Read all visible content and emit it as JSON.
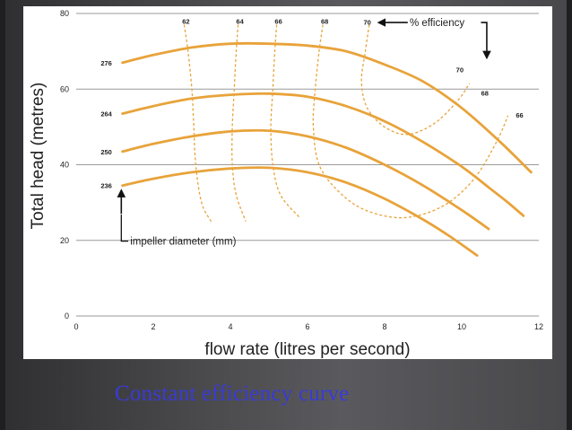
{
  "caption": "Constant efficiency curve",
  "colors": {
    "curve": "#E8A33A",
    "grid": "#9a9a9a",
    "text": "#222222",
    "caption": "#3a3ad6"
  },
  "chart_data": {
    "type": "line",
    "xlabel": "flow rate (litres per second)",
    "ylabel": "Total head (metres)",
    "xlim": [
      0,
      12
    ],
    "ylim": [
      0,
      80
    ],
    "xticks": [
      0,
      2,
      4,
      6,
      8,
      10,
      12
    ],
    "yticks": [
      0,
      20,
      40,
      60,
      80
    ],
    "grid": "horizontal",
    "series": [
      {
        "name": "276",
        "points": [
          [
            1.2,
            67
          ],
          [
            2,
            69
          ],
          [
            3,
            71
          ],
          [
            4,
            72
          ],
          [
            5,
            72
          ],
          [
            6,
            71.5
          ],
          [
            7,
            70
          ],
          [
            8,
            66.5
          ],
          [
            9,
            62
          ],
          [
            10,
            55
          ],
          [
            11,
            46
          ],
          [
            11.8,
            38
          ]
        ]
      },
      {
        "name": "264",
        "points": [
          [
            1.2,
            53.5
          ],
          [
            2,
            55.5
          ],
          [
            3,
            57.5
          ],
          [
            4,
            58.5
          ],
          [
            5,
            58.8
          ],
          [
            6,
            58
          ],
          [
            7,
            55.5
          ],
          [
            8,
            51.5
          ],
          [
            9,
            46
          ],
          [
            10,
            39.5
          ],
          [
            10.7,
            34
          ],
          [
            11.2,
            30
          ],
          [
            11.6,
            26.5
          ]
        ]
      },
      {
        "name": "250",
        "points": [
          [
            1.2,
            43.5
          ],
          [
            2,
            45.5
          ],
          [
            3,
            47.5
          ],
          [
            4,
            48.8
          ],
          [
            5,
            49
          ],
          [
            6,
            47.5
          ],
          [
            7,
            44.5
          ],
          [
            8,
            40
          ],
          [
            9,
            34.5
          ],
          [
            10,
            28
          ],
          [
            10.7,
            23
          ]
        ]
      },
      {
        "name": "236",
        "points": [
          [
            1.2,
            34.5
          ],
          [
            2,
            36.3
          ],
          [
            3,
            38
          ],
          [
            4,
            39
          ],
          [
            5,
            39.2
          ],
          [
            6,
            38
          ],
          [
            7,
            35.3
          ],
          [
            8,
            31
          ],
          [
            9,
            25.5
          ],
          [
            9.7,
            21
          ],
          [
            10.4,
            16
          ]
        ]
      }
    ],
    "efficiency_curves": [
      {
        "label": "62",
        "points": [
          [
            2.8,
            77
          ],
          [
            2.9,
            70
          ],
          [
            3,
            60
          ],
          [
            3.05,
            50
          ],
          [
            3.1,
            40
          ],
          [
            3.25,
            30
          ],
          [
            3.5,
            25
          ]
        ]
      },
      {
        "label": "64",
        "points": [
          [
            4.2,
            77
          ],
          [
            4.15,
            70
          ],
          [
            4.1,
            60
          ],
          [
            4.05,
            50
          ],
          [
            4.05,
            40
          ],
          [
            4.15,
            32
          ],
          [
            4.4,
            25
          ]
        ]
      },
      {
        "label": "66",
        "points": [
          [
            5.2,
            77
          ],
          [
            5.15,
            70
          ],
          [
            5.1,
            60
          ],
          [
            5.05,
            50
          ],
          [
            5.1,
            40
          ],
          [
            5.3,
            32
          ],
          [
            5.8,
            26
          ]
        ]
      },
      {
        "label": "68",
        "points": [
          [
            6.4,
            77
          ],
          [
            6.3,
            70
          ],
          [
            6.2,
            60
          ],
          [
            6.15,
            50
          ],
          [
            6.3,
            40
          ],
          [
            6.8,
            33
          ],
          [
            7.5,
            28
          ],
          [
            8.5,
            26
          ],
          [
            9.5,
            29
          ],
          [
            10.3,
            36
          ],
          [
            10.9,
            46
          ],
          [
            11.2,
            53
          ]
        ]
      },
      {
        "label": "70",
        "points": [
          [
            7.6,
            77
          ],
          [
            7.5,
            70
          ],
          [
            7.4,
            62
          ],
          [
            7.55,
            55
          ],
          [
            8,
            50
          ],
          [
            8.6,
            48
          ],
          [
            9.3,
            51
          ],
          [
            9.9,
            57
          ],
          [
            10.2,
            61.5
          ]
        ]
      }
    ],
    "efficiency_right_labels": [
      "70",
      "68",
      "66"
    ],
    "annotations": {
      "efficiency_label": "% efficiency",
      "efficiency_top_value": "70",
      "impeller_label": "impeller diameter (mm)"
    }
  }
}
